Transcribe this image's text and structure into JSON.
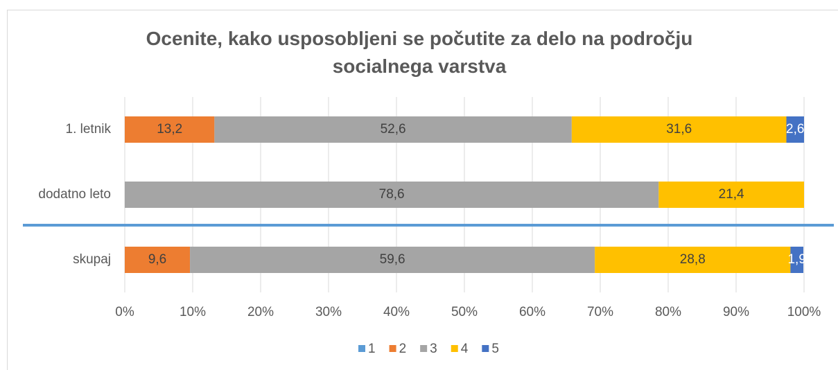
{
  "chart_data": {
    "type": "stacked_bar_horizontal",
    "title": "Ocenite, kako usposobljeni se počutite za delo na področju socialnega varstva",
    "categories": [
      "1. letnik",
      "dodatno leto",
      "skupaj"
    ],
    "series": [
      {
        "name": "1",
        "color": "#5b9bd5",
        "values": [
          0,
          0,
          0
        ]
      },
      {
        "name": "2",
        "color": "#ed7d31",
        "values": [
          13.2,
          0,
          9.6
        ],
        "value_labels": [
          "13,2",
          null,
          "9,6"
        ]
      },
      {
        "name": "3",
        "color": "#a5a5a5",
        "values": [
          52.6,
          78.6,
          59.6
        ],
        "value_labels": [
          "52,6",
          "78,6",
          "59,6"
        ]
      },
      {
        "name": "4",
        "color": "#ffc000",
        "values": [
          31.6,
          21.4,
          28.8
        ],
        "value_labels": [
          "31,6",
          "21,4",
          "28,8"
        ]
      },
      {
        "name": "5",
        "color": "#4472c4",
        "values": [
          2.6,
          0,
          1.9
        ],
        "value_labels": [
          "2,6",
          null,
          "1,9"
        ]
      }
    ],
    "xlim": [
      0,
      100
    ],
    "xticks": [
      {
        "value": 0,
        "label": "0%"
      },
      {
        "value": 10,
        "label": "10%"
      },
      {
        "value": 20,
        "label": "20%"
      },
      {
        "value": 30,
        "label": "30%"
      },
      {
        "value": 40,
        "label": "40%"
      },
      {
        "value": 50,
        "label": "50%"
      },
      {
        "value": 60,
        "label": "60%"
      },
      {
        "value": 70,
        "label": "70%"
      },
      {
        "value": 80,
        "label": "80%"
      },
      {
        "value": 90,
        "label": "90%"
      },
      {
        "value": 100,
        "label": "100%"
      }
    ],
    "grid": true,
    "legend": "bottom"
  }
}
